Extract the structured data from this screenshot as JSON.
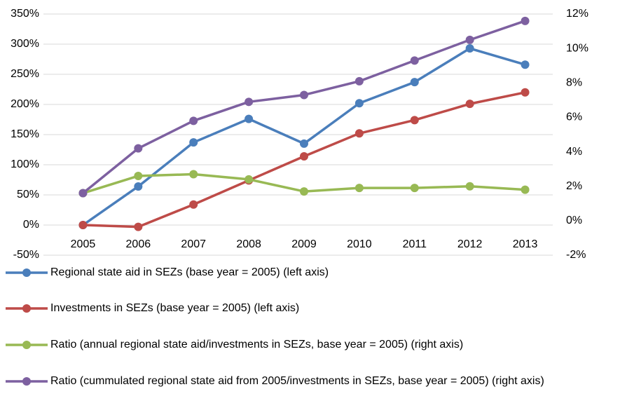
{
  "chart_data": {
    "type": "line",
    "categories": [
      "2005",
      "2006",
      "2007",
      "2008",
      "2009",
      "2010",
      "2011",
      "2012",
      "2013"
    ],
    "series": [
      {
        "name": "Regional state aid in SEZs (base year = 2005) (left axis)",
        "color": "#4a7ebb",
        "values": [
          0,
          64,
          137,
          176,
          135,
          202,
          237,
          293,
          266
        ]
      },
      {
        "name": "Investments in SEZs (base year = 2005) (left axis)",
        "color": "#be4b48",
        "values": [
          0,
          -3,
          34,
          74,
          114,
          152,
          174,
          201,
          220
        ]
      },
      {
        "name": "Ratio (annual regional state aid/investments in SEZs, base year = 2005) (right axis)",
        "color": "#98b954",
        "axis": "y2",
        "values": [
          1.6,
          2.6,
          2.7,
          2.4,
          1.7,
          1.9,
          1.9,
          2.0,
          1.8
        ]
      },
      {
        "name": "Ratio (cummulated regional state aid from 2005/investments in SEZs, base year = 2005) (right axis)",
        "color": "#7d60a0",
        "axis": "y2",
        "values": [
          1.6,
          4.2,
          5.8,
          6.9,
          7.3,
          8.1,
          9.3,
          10.5,
          11.6
        ]
      }
    ],
    "ylim": [
      -50,
      350
    ],
    "yticks": [
      {
        "value": -50,
        "label": "-50%"
      },
      {
        "value": 0,
        "label": "0%"
      },
      {
        "value": 50,
        "label": "50%"
      },
      {
        "value": 100,
        "label": "100%"
      },
      {
        "value": 150,
        "label": "150%"
      },
      {
        "value": 200,
        "label": "200%"
      },
      {
        "value": 250,
        "label": "250%"
      },
      {
        "value": 300,
        "label": "300%"
      },
      {
        "value": 350,
        "label": "350%"
      }
    ],
    "y2lim": [
      -2,
      12
    ],
    "y2ticks": [
      {
        "value": -2,
        "label": "-2%"
      },
      {
        "value": 0,
        "label": "0%"
      },
      {
        "value": 2,
        "label": "2%"
      },
      {
        "value": 4,
        "label": "4%"
      },
      {
        "value": 6,
        "label": "6%"
      },
      {
        "value": 8,
        "label": "8%"
      },
      {
        "value": 10,
        "label": "10%"
      },
      {
        "value": 12,
        "label": "12%"
      }
    ],
    "grid": true,
    "legend": "bottom"
  }
}
